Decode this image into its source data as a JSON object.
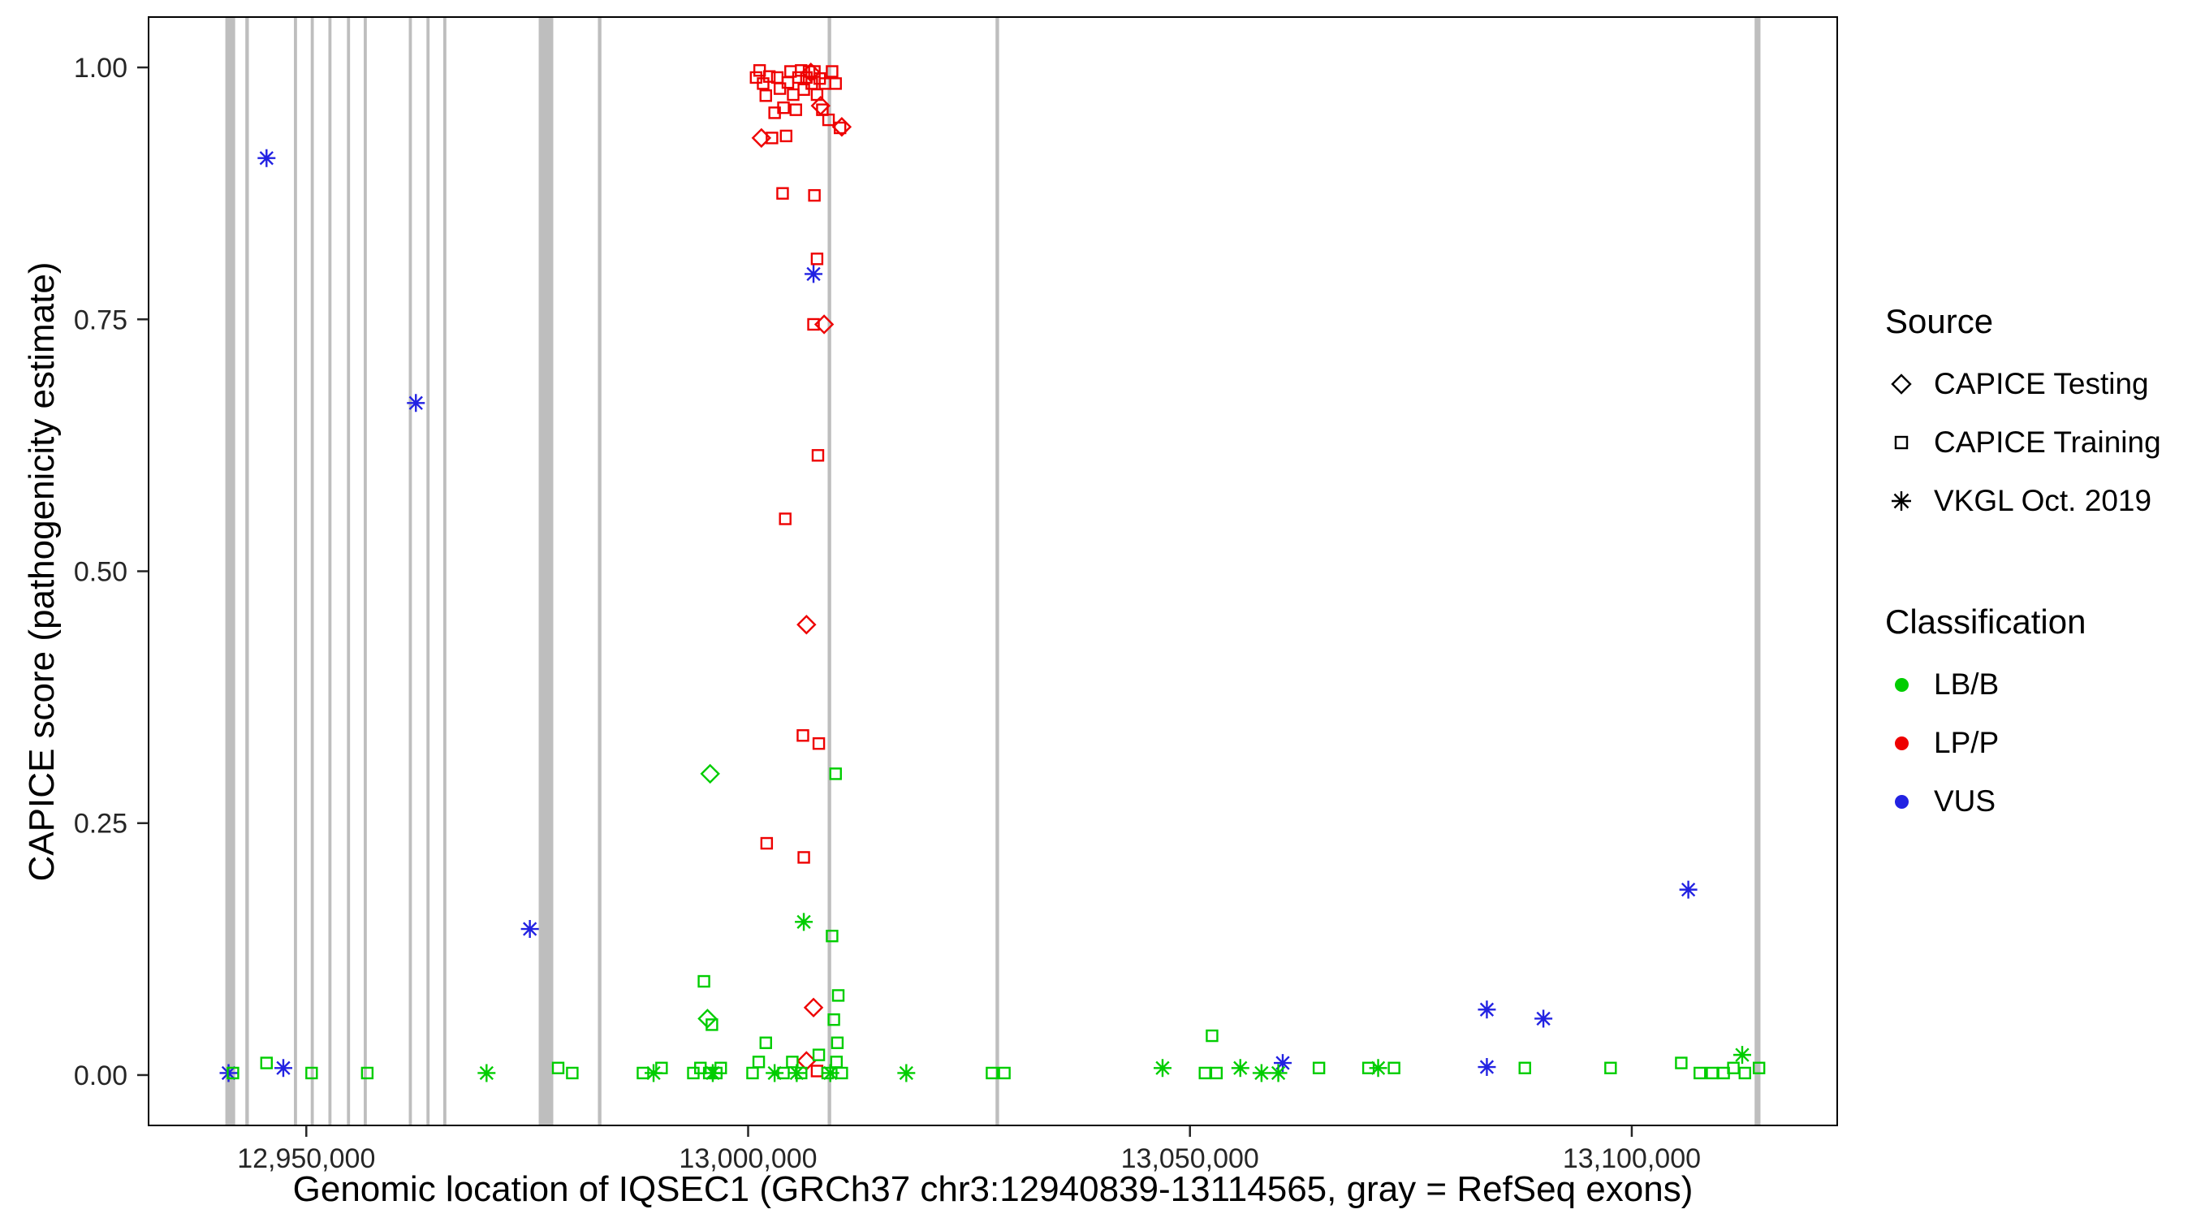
{
  "figure": {
    "x_axis": {
      "label": "Genomic location of IQSEC1 (GRCh37 chr3:12940839-13114565, gray = RefSeq exons)",
      "ticks": [
        {
          "value": 12950000,
          "label": "12,950,000"
        },
        {
          "value": 13000000,
          "label": "13,000,000"
        },
        {
          "value": 13050000,
          "label": "13,050,000"
        },
        {
          "value": 13100000,
          "label": "13,100,000"
        }
      ]
    },
    "y_axis": {
      "label": "CAPICE score (pathogenicity estimate)",
      "ticks": [
        {
          "value": 0.0,
          "label": "0.00"
        },
        {
          "value": 0.25,
          "label": "0.25"
        },
        {
          "value": 0.5,
          "label": "0.50"
        },
        {
          "value": 0.75,
          "label": "0.75"
        },
        {
          "value": 1.0,
          "label": "1.00"
        }
      ]
    },
    "legend": {
      "source": {
        "title": "Source",
        "items": [
          {
            "label": "CAPICE Testing",
            "symbol": "diamond"
          },
          {
            "label": "CAPICE Training",
            "symbol": "square"
          },
          {
            "label": "VKGL Oct. 2019",
            "symbol": "asterisk"
          }
        ]
      },
      "classification": {
        "title": "Classification",
        "items": [
          {
            "label": "LB/B",
            "color": "#00CD00"
          },
          {
            "label": "LP/P",
            "color": "#EE0000"
          },
          {
            "label": "VUS",
            "color": "#2222E2"
          }
        ]
      }
    }
  },
  "chart_data": {
    "type": "scatter",
    "title": "",
    "xlabel": "Genomic location of IQSEC1 (GRCh37 chr3:12940839-13114565, gray = RefSeq exons)",
    "ylabel": "CAPICE score (pathogenicity estimate)",
    "xlim": [
      12932150,
      13123250
    ],
    "ylim": [
      -0.05,
      1.05
    ],
    "grid": false,
    "legend_position": "right",
    "exon_color": "#BEBEBE",
    "color_by_classification": {
      "LB/B": "#00CD00",
      "LP/P": "#EE0000",
      "VUS": "#2222E2"
    },
    "symbol_by_source": {
      "testing": "open-diamond",
      "training": "open-square",
      "vkgl": "asterisk"
    },
    "exons": [
      [
        12940839,
        12941950
      ],
      [
        12943100,
        12943500
      ],
      [
        12948600,
        12948950
      ],
      [
        12950500,
        12950850
      ],
      [
        12952500,
        12952850
      ],
      [
        12954600,
        12954950
      ],
      [
        12956500,
        12956850
      ],
      [
        12961600,
        12961950
      ],
      [
        12963600,
        12963950
      ],
      [
        12965500,
        12965850
      ],
      [
        12976300,
        12977950
      ],
      [
        12983000,
        12983400
      ],
      [
        13009000,
        13009400
      ],
      [
        13028000,
        13028400
      ],
      [
        13113900,
        13114565
      ]
    ],
    "points_format": [
      "genomic_position",
      "capice_score",
      "source",
      "classification"
    ],
    "points": [
      [
        12941200,
        0.002,
        "vkgl",
        "VUS"
      ],
      [
        12945500,
        0.91,
        "vkgl",
        "VUS"
      ],
      [
        12947400,
        0.007,
        "vkgl",
        "VUS"
      ],
      [
        12962400,
        0.667,
        "vkgl",
        "VUS"
      ],
      [
        12975300,
        0.145,
        "vkgl",
        "VUS"
      ],
      [
        13007400,
        0.795,
        "vkgl",
        "VUS"
      ],
      [
        13060500,
        0.012,
        "vkgl",
        "VUS"
      ],
      [
        13083600,
        0.065,
        "vkgl",
        "VUS"
      ],
      [
        13083600,
        0.008,
        "vkgl",
        "VUS"
      ],
      [
        13090000,
        0.056,
        "vkgl",
        "VUS"
      ],
      [
        13106400,
        0.184,
        "vkgl",
        "VUS"
      ],
      [
        13000900,
        0.99,
        "training",
        "LP/P"
      ],
      [
        13001300,
        0.997,
        "training",
        "LP/P"
      ],
      [
        13001700,
        0.984,
        "training",
        "LP/P"
      ],
      [
        13002000,
        0.972,
        "training",
        "LP/P"
      ],
      [
        13002400,
        0.991,
        "training",
        "LP/P"
      ],
      [
        13002700,
        0.93,
        "training",
        "LP/P"
      ],
      [
        13003000,
        0.955,
        "training",
        "LP/P"
      ],
      [
        13003300,
        0.99,
        "training",
        "LP/P"
      ],
      [
        13003600,
        0.979,
        "training",
        "LP/P"
      ],
      [
        13004000,
        0.96,
        "training",
        "LP/P"
      ],
      [
        13004300,
        0.932,
        "training",
        "LP/P"
      ],
      [
        13004500,
        0.985,
        "training",
        "LP/P"
      ],
      [
        13004800,
        0.996,
        "training",
        "LP/P"
      ],
      [
        13005100,
        0.973,
        "training",
        "LP/P"
      ],
      [
        13005400,
        0.958,
        "training",
        "LP/P"
      ],
      [
        13005700,
        0.99,
        "training",
        "LP/P"
      ],
      [
        13006000,
        0.997,
        "training",
        "LP/P"
      ],
      [
        13006300,
        0.978,
        "training",
        "LP/P"
      ],
      [
        13006600,
        0.99,
        "training",
        "LP/P"
      ],
      [
        13006900,
        0.996,
        "training",
        "LP/P"
      ],
      [
        13007200,
        0.984,
        "training",
        "LP/P"
      ],
      [
        13007500,
        0.996,
        "training",
        "LP/P"
      ],
      [
        13007800,
        0.973,
        "training",
        "LP/P"
      ],
      [
        13008100,
        0.989,
        "training",
        "LP/P"
      ],
      [
        13008400,
        0.958,
        "training",
        "LP/P"
      ],
      [
        13008700,
        0.984,
        "training",
        "LP/P"
      ],
      [
        13009100,
        0.948,
        "training",
        "LP/P"
      ],
      [
        13009500,
        0.996,
        "training",
        "LP/P"
      ],
      [
        13009900,
        0.984,
        "training",
        "LP/P"
      ],
      [
        13010400,
        0.94,
        "training",
        "LP/P"
      ],
      [
        13003900,
        0.875,
        "training",
        "LP/P"
      ],
      [
        13007500,
        0.873,
        "training",
        "LP/P"
      ],
      [
        13007800,
        0.81,
        "training",
        "LP/P"
      ],
      [
        13007400,
        0.745,
        "training",
        "LP/P"
      ],
      [
        13007900,
        0.615,
        "training",
        "LP/P"
      ],
      [
        13004200,
        0.552,
        "training",
        "LP/P"
      ],
      [
        13006200,
        0.337,
        "training",
        "LP/P"
      ],
      [
        13008000,
        0.329,
        "training",
        "LP/P"
      ],
      [
        13002100,
        0.23,
        "training",
        "LP/P"
      ],
      [
        13006300,
        0.216,
        "training",
        "LP/P"
      ],
      [
        13007800,
        0.004,
        "training",
        "LP/P"
      ],
      [
        13001500,
        0.93,
        "testing",
        "LP/P"
      ],
      [
        13007100,
        0.995,
        "testing",
        "LP/P"
      ],
      [
        13008200,
        0.962,
        "testing",
        "LP/P"
      ],
      [
        13010600,
        0.941,
        "testing",
        "LP/P"
      ],
      [
        13008600,
        0.745,
        "testing",
        "LP/P"
      ],
      [
        13006600,
        0.447,
        "testing",
        "LP/P"
      ],
      [
        13007400,
        0.067,
        "testing",
        "LP/P"
      ],
      [
        13006600,
        0.014,
        "testing",
        "LP/P"
      ],
      [
        12995700,
        0.299,
        "testing",
        "LB/B"
      ],
      [
        12995400,
        0.056,
        "testing",
        "LB/B"
      ],
      [
        12941700,
        0.002,
        "training",
        "LB/B"
      ],
      [
        12945500,
        0.012,
        "training",
        "LB/B"
      ],
      [
        12950600,
        0.002,
        "training",
        "LB/B"
      ],
      [
        12956900,
        0.002,
        "training",
        "LB/B"
      ],
      [
        12978500,
        0.007,
        "training",
        "LB/B"
      ],
      [
        12980100,
        0.002,
        "training",
        "LB/B"
      ],
      [
        12988100,
        0.002,
        "training",
        "LB/B"
      ],
      [
        12990200,
        0.007,
        "training",
        "LB/B"
      ],
      [
        12993800,
        0.002,
        "training",
        "LB/B"
      ],
      [
        12994600,
        0.007,
        "training",
        "LB/B"
      ],
      [
        12995000,
        0.093,
        "training",
        "LB/B"
      ],
      [
        12995600,
        0.002,
        "training",
        "LB/B"
      ],
      [
        12995900,
        0.05,
        "training",
        "LB/B"
      ],
      [
        12996400,
        0.002,
        "training",
        "LB/B"
      ],
      [
        12996900,
        0.007,
        "training",
        "LB/B"
      ],
      [
        13000500,
        0.002,
        "training",
        "LB/B"
      ],
      [
        13001200,
        0.013,
        "training",
        "LB/B"
      ],
      [
        13002000,
        0.032,
        "training",
        "LB/B"
      ],
      [
        13004000,
        0.002,
        "training",
        "LB/B"
      ],
      [
        13005000,
        0.013,
        "training",
        "LB/B"
      ],
      [
        13006000,
        0.002,
        "training",
        "LB/B"
      ],
      [
        13008000,
        0.02,
        "training",
        "LB/B"
      ],
      [
        13009000,
        0.002,
        "training",
        "LB/B"
      ],
      [
        13009500,
        0.138,
        "training",
        "LB/B"
      ],
      [
        13009700,
        0.055,
        "training",
        "LB/B"
      ],
      [
        13009900,
        0.299,
        "training",
        "LB/B"
      ],
      [
        13010000,
        0.013,
        "training",
        "LB/B"
      ],
      [
        13010100,
        0.032,
        "training",
        "LB/B"
      ],
      [
        13010200,
        0.079,
        "training",
        "LB/B"
      ],
      [
        13010600,
        0.002,
        "training",
        "LB/B"
      ],
      [
        13027600,
        0.002,
        "training",
        "LB/B"
      ],
      [
        13029000,
        0.002,
        "training",
        "LB/B"
      ],
      [
        13051700,
        0.002,
        "training",
        "LB/B"
      ],
      [
        13052500,
        0.039,
        "training",
        "LB/B"
      ],
      [
        13053000,
        0.002,
        "training",
        "LB/B"
      ],
      [
        13064600,
        0.007,
        "training",
        "LB/B"
      ],
      [
        13070200,
        0.007,
        "training",
        "LB/B"
      ],
      [
        13073100,
        0.007,
        "training",
        "LB/B"
      ],
      [
        13087900,
        0.007,
        "training",
        "LB/B"
      ],
      [
        13097600,
        0.007,
        "training",
        "LB/B"
      ],
      [
        13105600,
        0.012,
        "training",
        "LB/B"
      ],
      [
        13107700,
        0.002,
        "training",
        "LB/B"
      ],
      [
        13109100,
        0.002,
        "training",
        "LB/B"
      ],
      [
        13110400,
        0.002,
        "training",
        "LB/B"
      ],
      [
        13111500,
        0.007,
        "training",
        "LB/B"
      ],
      [
        13112800,
        0.002,
        "training",
        "LB/B"
      ],
      [
        13114400,
        0.007,
        "training",
        "LB/B"
      ],
      [
        12970400,
        0.002,
        "vkgl",
        "LB/B"
      ],
      [
        12989300,
        0.002,
        "vkgl",
        "LB/B"
      ],
      [
        12996000,
        0.002,
        "vkgl",
        "LB/B"
      ],
      [
        13003000,
        0.002,
        "vkgl",
        "LB/B"
      ],
      [
        13005500,
        0.002,
        "vkgl",
        "LB/B"
      ],
      [
        13006300,
        0.152,
        "vkgl",
        "LB/B"
      ],
      [
        13009300,
        0.002,
        "vkgl",
        "LB/B"
      ],
      [
        13017900,
        0.002,
        "vkgl",
        "LB/B"
      ],
      [
        13046900,
        0.007,
        "vkgl",
        "LB/B"
      ],
      [
        13055700,
        0.007,
        "vkgl",
        "LB/B"
      ],
      [
        13058100,
        0.002,
        "vkgl",
        "LB/B"
      ],
      [
        13060000,
        0.002,
        "vkgl",
        "LB/B"
      ],
      [
        13071300,
        0.007,
        "vkgl",
        "LB/B"
      ],
      [
        13112500,
        0.02,
        "vkgl",
        "LB/B"
      ]
    ]
  }
}
